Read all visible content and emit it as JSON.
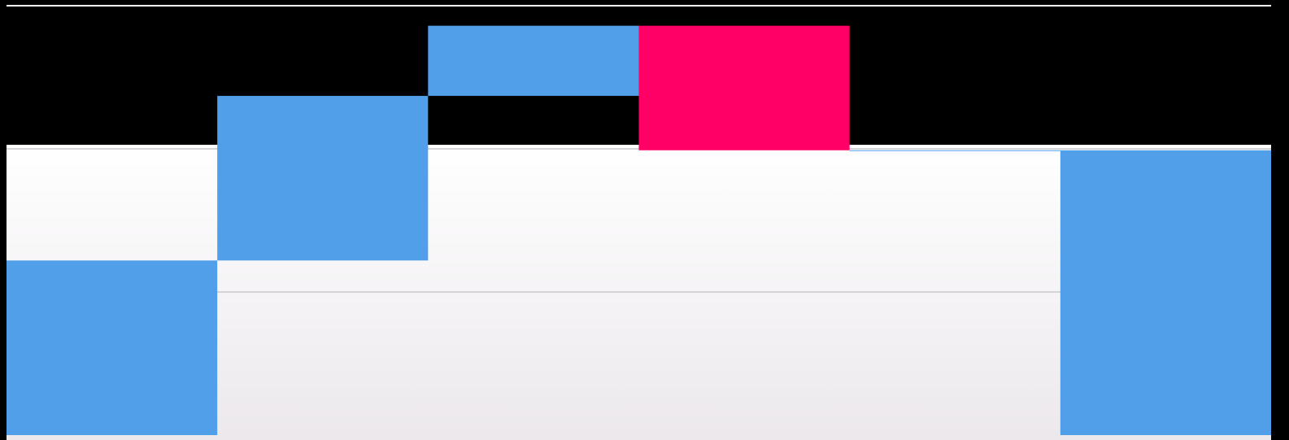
{
  "chart_data": {
    "type": "waterfall",
    "categories": [
      null,
      null,
      null,
      null,
      null,
      null
    ],
    "values": [
      122,
      115,
      49,
      -87,
      0,
      199
    ],
    "is_total": [
      false,
      false,
      false,
      false,
      false,
      true
    ],
    "increase_color": "#509fe8",
    "decrease_color": "#ff0066",
    "total_color": "#509fe8",
    "ylim": [
      0,
      300
    ],
    "yticks": [
      0,
      100,
      200,
      300
    ],
    "grid": true
  }
}
